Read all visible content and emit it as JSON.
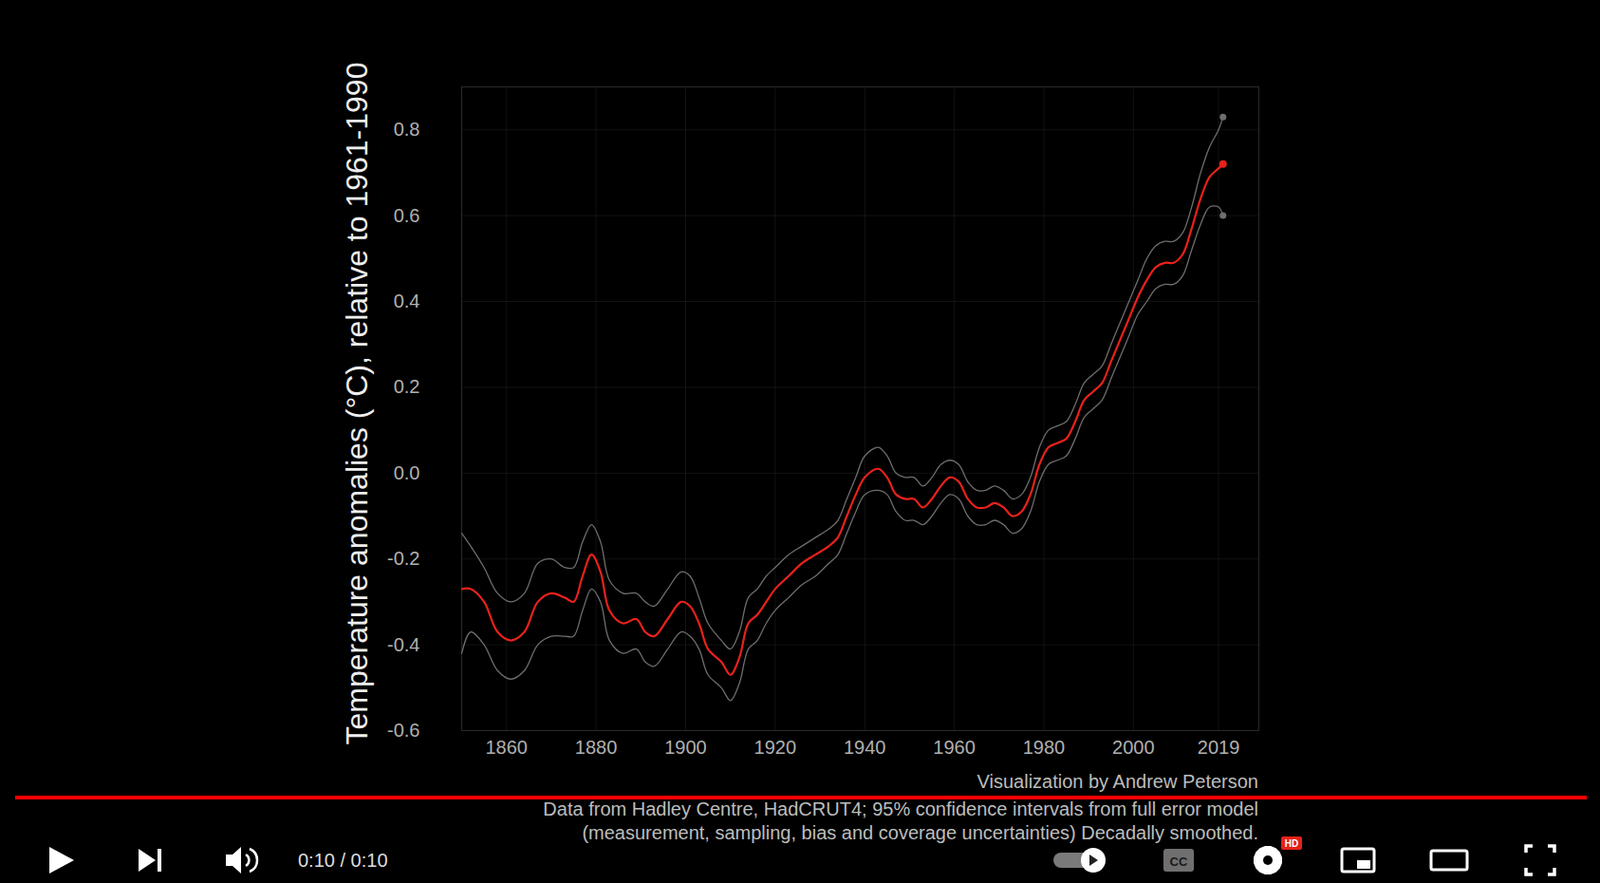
{
  "chart_data": {
    "type": "line",
    "y_label": "Temperature anomalies (°C), relative to 1961-1990",
    "caption": [
      "Visualization by Andrew Peterson",
      "Data from Hadley Centre, HadCRUT4; 95% confidence intervals from full error model",
      "(measurement, sampling, bias and coverage uncertainties) Decadally smoothed."
    ],
    "x": [
      1850,
      1852,
      1855,
      1858,
      1861,
      1864,
      1867,
      1870,
      1873,
      1875,
      1877,
      1879,
      1881,
      1883,
      1886,
      1889,
      1891,
      1893,
      1896,
      1899,
      1901,
      1903,
      1905,
      1908,
      1910,
      1912,
      1914,
      1916,
      1918,
      1920,
      1923,
      1926,
      1929,
      1932,
      1934,
      1936,
      1938,
      1940,
      1943,
      1945,
      1947,
      1949,
      1951,
      1953,
      1955,
      1957,
      1959,
      1961,
      1963,
      1965,
      1967,
      1969,
      1971,
      1973,
      1975,
      1977,
      1979,
      1981,
      1983,
      1985,
      1987,
      1989,
      1991,
      1993,
      1995,
      1997,
      1999,
      2001,
      2003,
      2005,
      2007,
      2009,
      2011,
      2013,
      2015,
      2017,
      2019,
      2020
    ],
    "series": [
      {
        "color": "#e8221b",
        "values": [
          -0.27,
          -0.27,
          -0.3,
          -0.37,
          -0.39,
          -0.37,
          -0.3,
          -0.28,
          -0.29,
          -0.3,
          -0.24,
          -0.19,
          -0.23,
          -0.32,
          -0.35,
          -0.34,
          -0.37,
          -0.38,
          -0.34,
          -0.3,
          -0.31,
          -0.35,
          -0.41,
          -0.44,
          -0.47,
          -0.43,
          -0.35,
          -0.33,
          -0.3,
          -0.27,
          -0.24,
          -0.21,
          -0.19,
          -0.17,
          -0.15,
          -0.1,
          -0.05,
          -0.01,
          0.01,
          -0.01,
          -0.05,
          -0.06,
          -0.06,
          -0.08,
          -0.06,
          -0.03,
          -0.01,
          -0.02,
          -0.06,
          -0.08,
          -0.08,
          -0.07,
          -0.08,
          -0.1,
          -0.09,
          -0.05,
          0.02,
          0.06,
          0.07,
          0.08,
          0.12,
          0.17,
          0.19,
          0.21,
          0.26,
          0.31,
          0.36,
          0.41,
          0.45,
          0.48,
          0.49,
          0.49,
          0.51,
          0.57,
          0.64,
          0.69,
          0.71,
          0.72
        ]
      },
      {
        "color": "#6e6e6e",
        "values": [
          -0.14,
          -0.17,
          -0.22,
          -0.28,
          -0.3,
          -0.28,
          -0.21,
          -0.2,
          -0.22,
          -0.22,
          -0.16,
          -0.12,
          -0.16,
          -0.25,
          -0.28,
          -0.28,
          -0.3,
          -0.31,
          -0.27,
          -0.23,
          -0.24,
          -0.29,
          -0.35,
          -0.39,
          -0.41,
          -0.37,
          -0.29,
          -0.27,
          -0.24,
          -0.22,
          -0.19,
          -0.17,
          -0.15,
          -0.13,
          -0.11,
          -0.06,
          -0.01,
          0.04,
          0.06,
          0.04,
          0.0,
          -0.01,
          -0.01,
          -0.03,
          -0.01,
          0.02,
          0.03,
          0.02,
          -0.02,
          -0.04,
          -0.04,
          -0.03,
          -0.04,
          -0.06,
          -0.05,
          -0.01,
          0.06,
          0.1,
          0.11,
          0.12,
          0.16,
          0.21,
          0.23,
          0.25,
          0.3,
          0.35,
          0.4,
          0.45,
          0.5,
          0.53,
          0.54,
          0.54,
          0.56,
          0.62,
          0.7,
          0.76,
          0.8,
          0.83
        ]
      },
      {
        "color": "#6e6e6e",
        "values": [
          -0.42,
          -0.37,
          -0.4,
          -0.46,
          -0.48,
          -0.46,
          -0.4,
          -0.38,
          -0.38,
          -0.38,
          -0.32,
          -0.27,
          -0.3,
          -0.39,
          -0.42,
          -0.41,
          -0.44,
          -0.45,
          -0.41,
          -0.37,
          -0.38,
          -0.41,
          -0.47,
          -0.5,
          -0.53,
          -0.49,
          -0.41,
          -0.39,
          -0.35,
          -0.32,
          -0.29,
          -0.26,
          -0.24,
          -0.21,
          -0.19,
          -0.14,
          -0.09,
          -0.05,
          -0.04,
          -0.05,
          -0.09,
          -0.11,
          -0.11,
          -0.12,
          -0.1,
          -0.07,
          -0.05,
          -0.06,
          -0.1,
          -0.12,
          -0.12,
          -0.11,
          -0.12,
          -0.14,
          -0.13,
          -0.09,
          -0.02,
          0.02,
          0.03,
          0.04,
          0.08,
          0.13,
          0.15,
          0.17,
          0.22,
          0.27,
          0.32,
          0.37,
          0.4,
          0.43,
          0.44,
          0.44,
          0.46,
          0.52,
          0.58,
          0.62,
          0.62,
          0.6
        ]
      }
    ],
    "xlim": [
      1850,
      2028
    ],
    "xticks": [
      1860,
      1880,
      1900,
      1920,
      1940,
      1960,
      1980,
      2000,
      2019
    ],
    "ylim": [
      -0.6,
      0.9
    ],
    "yticks": [
      -0.6,
      -0.4,
      -0.2,
      {
        "value": 0,
        "label": "0.0"
      },
      0.2,
      0.4,
      0.6,
      0.8
    ],
    "grid": true
  },
  "player": {
    "time": "0:10 / 0:10",
    "captions_button": "CC",
    "badge": "HD"
  }
}
